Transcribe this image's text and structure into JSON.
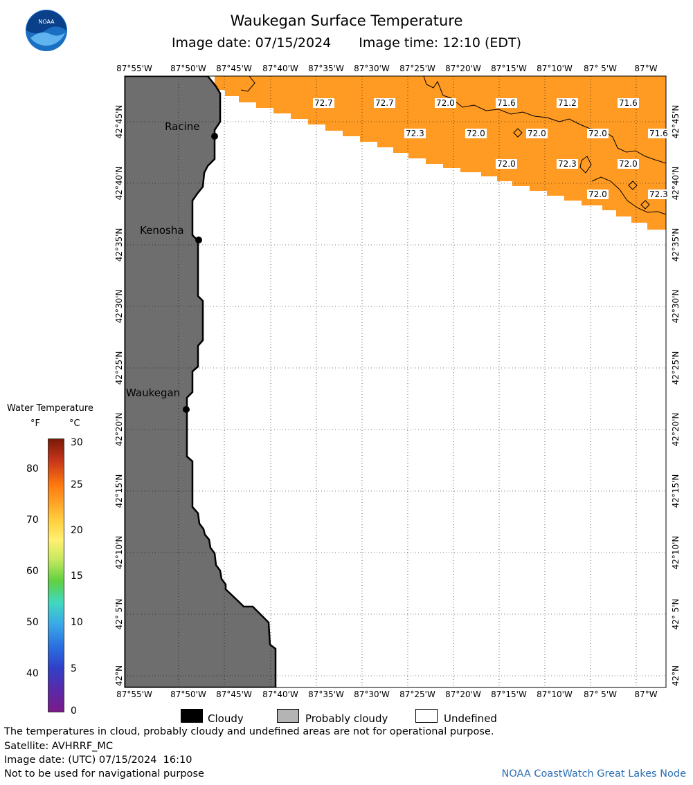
{
  "title": "Waukegan Surface Temperature",
  "image_date": "Image date: 07/15/2024",
  "image_time": "Image time: 12:10 (EDT)",
  "logo_text": "NOAA",
  "lon_labels": [
    "87°55'W",
    "87°50'W",
    "87°45'W",
    "87°40'W",
    "87°35'W",
    "87°30'W",
    "87°25'W",
    "87°20'W",
    "87°15'W",
    "87°10'W",
    "87° 5'W",
    "87°W"
  ],
  "lat_labels": [
    "42°45'N",
    "42°40'N",
    "42°35'N",
    "42°30'N",
    "42°25'N",
    "42°20'N",
    "42°15'N",
    "42°10'N",
    "42° 5'N",
    "42°N"
  ],
  "cities": [
    {
      "name": "Racine"
    },
    {
      "name": "Kenosha"
    },
    {
      "name": "Waukegan"
    }
  ],
  "temperature_labels": [
    "72.7",
    "72.7",
    "72.0",
    "71.6",
    "71.2",
    "71.6",
    "72.3",
    "72.0",
    "72.0",
    "72.0",
    "71.6",
    "72.0",
    "72.3",
    "72.0",
    "72.0",
    "72.3"
  ],
  "legend": {
    "title": "Water Temperature",
    "unit_f": "°F",
    "unit_c": "°C",
    "f_ticks": [
      "80",
      "70",
      "60",
      "50",
      "40"
    ],
    "c_ticks": [
      "30",
      "25",
      "20",
      "15",
      "10",
      "5",
      "0"
    ]
  },
  "key": {
    "cloudy": "Cloudy",
    "probably_cloudy": "Probably cloudy",
    "undefined": "Undefined"
  },
  "colors": {
    "land": "#6e6e6e",
    "water_temp": "#ff9a22",
    "undefined": "#ffffff",
    "cloudy": "#000000",
    "probably_cloudy": "#b4b4b4",
    "credit": "#2d6fb5"
  },
  "footer": {
    "line1": "The temperatures in cloud, probably cloudy and undefined areas are not for operational purpose.",
    "line2": "Satellite: AVHRRF_MC",
    "line3": "Image date: (UTC) 07/15/2024  16:10",
    "line4": "Not to be used for navigational purpose",
    "credit": "NOAA CoastWatch Great Lakes Node"
  }
}
